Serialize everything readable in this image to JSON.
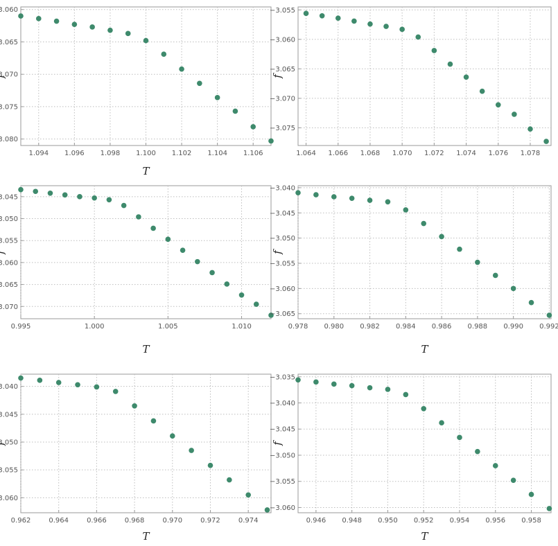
{
  "marker_color": "#3e8a6c",
  "chart_data": [
    {
      "type": "scatter",
      "title": "",
      "xlabel": "T",
      "ylabel": "f",
      "xlim": [
        1.093,
        1.107
      ],
      "ylim": [
        -3.081,
        -3.0596
      ],
      "xticks": [
        1.094,
        1.096,
        1.098,
        1.1,
        1.102,
        1.104,
        1.106
      ],
      "yticks": [
        -3.06,
        -3.065,
        -3.07,
        -3.075,
        -3.08
      ],
      "grid": true,
      "x": [
        1.093,
        1.094,
        1.095,
        1.096,
        1.097,
        1.098,
        1.099,
        1.1,
        1.101,
        1.102,
        1.103,
        1.104,
        1.105,
        1.106,
        1.107
      ],
      "y": [
        -3.061,
        -3.0614,
        -3.0618,
        -3.0623,
        -3.0627,
        -3.0632,
        -3.0637,
        -3.0648,
        -3.0669,
        -3.0692,
        -3.0714,
        -3.0736,
        -3.0757,
        -3.0781,
        -3.0803
      ]
    },
    {
      "type": "scatter",
      "title": "",
      "xlabel": "",
      "ylabel": "f",
      "xlim": [
        1.0635,
        1.0793
      ],
      "ylim": [
        -3.078,
        -3.0545
      ],
      "xticks": [
        1.064,
        1.066,
        1.068,
        1.07,
        1.072,
        1.074,
        1.076,
        1.078
      ],
      "yticks": [
        -3.055,
        -3.06,
        -3.065,
        -3.07,
        -3.075
      ],
      "grid": true,
      "x": [
        1.064,
        1.065,
        1.066,
        1.067,
        1.068,
        1.069,
        1.07,
        1.071,
        1.072,
        1.073,
        1.074,
        1.075,
        1.076,
        1.077,
        1.078,
        1.079
      ],
      "y": [
        -3.0556,
        -3.056,
        -3.0564,
        -3.0569,
        -3.0574,
        -3.0578,
        -3.0583,
        -3.0596,
        -3.0619,
        -3.0642,
        -3.0664,
        -3.0688,
        -3.0711,
        -3.0727,
        -3.0752,
        -3.0773
      ]
    },
    {
      "type": "scatter",
      "title": "",
      "xlabel": "T",
      "ylabel": "f",
      "xlim": [
        0.995,
        1.012
      ],
      "ylim": [
        -3.0728,
        -3.0425
      ],
      "xticks": [
        0.995,
        1.0,
        1.005,
        1.01
      ],
      "yticks": [
        -3.045,
        -3.05,
        -3.055,
        -3.06,
        -3.065,
        -3.07
      ],
      "grid": true,
      "x": [
        0.995,
        0.996,
        0.997,
        0.998,
        0.999,
        1.0,
        1.001,
        1.002,
        1.003,
        1.004,
        1.005,
        1.006,
        1.007,
        1.008,
        1.009,
        1.01,
        1.011,
        1.012
      ],
      "y": [
        -3.0434,
        -3.0438,
        -3.0442,
        -3.0446,
        -3.045,
        -3.0453,
        -3.0457,
        -3.047,
        -3.0496,
        -3.0522,
        -3.0547,
        -3.0572,
        -3.0598,
        -3.0623,
        -3.0649,
        -3.0674,
        -3.0695,
        -3.072
      ]
    },
    {
      "type": "scatter",
      "title": "",
      "xlabel": "T",
      "ylabel": "f",
      "xlim": [
        0.978,
        0.9921
      ],
      "ylim": [
        -3.066,
        -3.0396
      ],
      "xticks": [
        0.978,
        0.98,
        0.982,
        0.984,
        0.986,
        0.988,
        0.99,
        0.992
      ],
      "yticks": [
        -3.04,
        -3.045,
        -3.05,
        -3.055,
        -3.06,
        -3.065
      ],
      "grid": true,
      "x": [
        0.978,
        0.979,
        0.98,
        0.981,
        0.982,
        0.983,
        0.984,
        0.985,
        0.986,
        0.987,
        0.988,
        0.989,
        0.99,
        0.991,
        0.992
      ],
      "y": [
        -3.041,
        -3.0414,
        -3.0418,
        -3.0421,
        -3.0425,
        -3.0428,
        -3.0444,
        -3.0471,
        -3.0497,
        -3.0522,
        -3.0548,
        -3.0574,
        -3.06,
        -3.0628,
        -3.0653
      ]
    },
    {
      "type": "scatter",
      "title": "",
      "xlabel": "T",
      "ylabel": "f",
      "xlim": [
        0.962,
        0.9752
      ],
      "ylim": [
        -3.0627,
        -3.0378
      ],
      "xticks": [
        0.962,
        0.964,
        0.966,
        0.968,
        0.97,
        0.972,
        0.974
      ],
      "yticks": [
        -3.04,
        -3.045,
        -3.05,
        -3.055,
        -3.06
      ],
      "grid": true,
      "x": [
        0.962,
        0.963,
        0.964,
        0.965,
        0.966,
        0.967,
        0.968,
        0.969,
        0.97,
        0.971,
        0.972,
        0.973,
        0.974,
        0.975
      ],
      "y": [
        -3.0385,
        -3.0389,
        -3.0393,
        -3.0397,
        -3.0401,
        -3.0409,
        -3.0435,
        -3.0462,
        -3.0489,
        -3.0515,
        -3.0542,
        -3.0568,
        -3.0595,
        -3.0622
      ]
    },
    {
      "type": "scatter",
      "title": "",
      "xlabel": "T",
      "ylabel": "f",
      "xlim": [
        0.945,
        0.9591
      ],
      "ylim": [
        -3.061,
        -3.0345
      ],
      "xticks": [
        0.946,
        0.948,
        0.95,
        0.952,
        0.954,
        0.956,
        0.958
      ],
      "yticks": [
        -3.035,
        -3.04,
        -3.045,
        -3.05,
        -3.055,
        -3.06
      ],
      "grid": true,
      "x": [
        0.945,
        0.946,
        0.947,
        0.948,
        0.949,
        0.95,
        0.951,
        0.952,
        0.953,
        0.954,
        0.955,
        0.956,
        0.957,
        0.958,
        0.959
      ],
      "y": [
        -3.0356,
        -3.036,
        -3.0364,
        -3.0367,
        -3.0371,
        -3.0374,
        -3.0384,
        -3.0411,
        -3.0438,
        -3.0466,
        -3.0493,
        -3.052,
        -3.0548,
        -3.0575,
        -3.0602
      ]
    }
  ]
}
